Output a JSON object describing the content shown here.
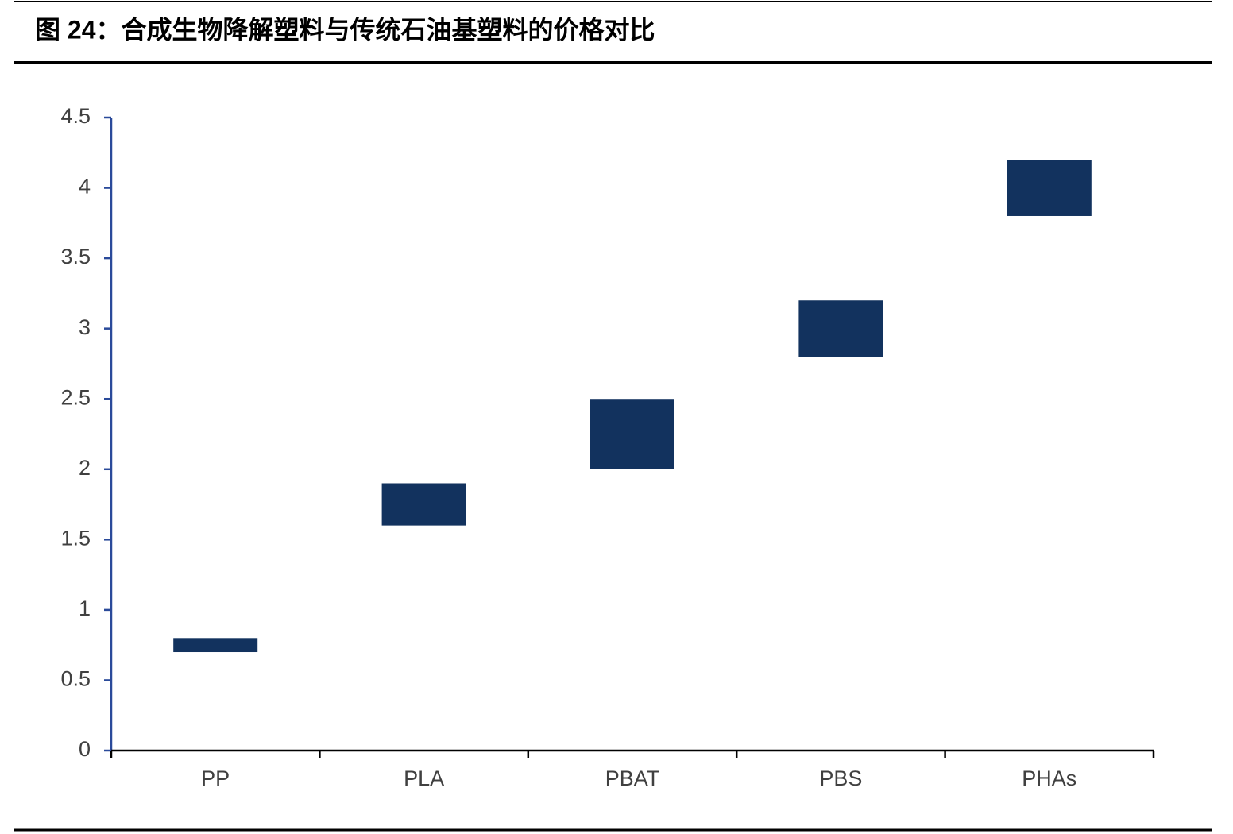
{
  "chart_data": {
    "type": "floating_bar",
    "title": "图 24：合成生物降解塑料与传统石油基塑料的价格对比",
    "categories": [
      "PP",
      "PLA",
      "PBAT",
      "PBS",
      "PHAs"
    ],
    "low": [
      0.7,
      1.6,
      2.0,
      2.8,
      3.8
    ],
    "high": [
      0.8,
      1.9,
      2.5,
      3.2,
      4.2
    ],
    "color": "#12325e",
    "ylim": [
      0,
      4.5
    ],
    "yticks": [
      0,
      0.5,
      1,
      1.5,
      2,
      2.5,
      3,
      3.5,
      4,
      4.5
    ],
    "grid": false
  }
}
